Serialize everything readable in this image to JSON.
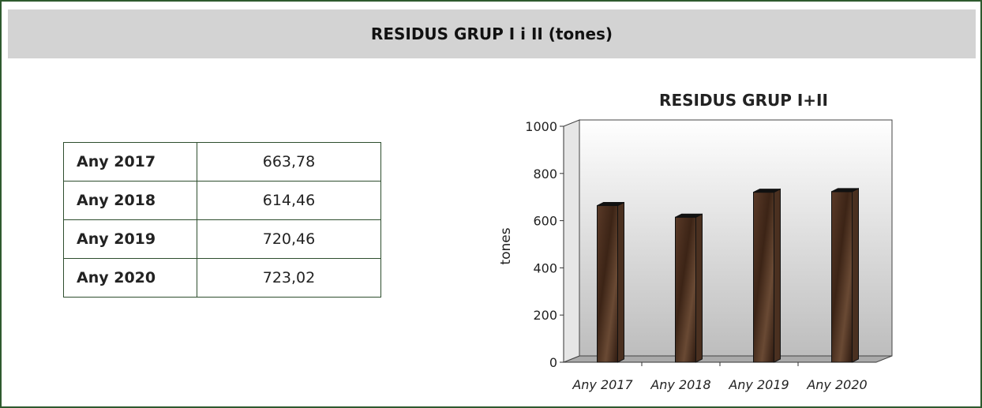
{
  "header": {
    "title": "RESIDUS GRUP I i II (tones)"
  },
  "chart_data": {
    "type": "bar",
    "title": "RESIDUS GRUP I+II",
    "y_label": "tones",
    "categories": [
      "Any 2017",
      "Any 2018",
      "Any 2019",
      "Any 2020"
    ],
    "values": [
      663.78,
      614.46,
      720.46,
      723.02
    ],
    "value_labels": [
      "663,78",
      "614,46",
      "720,46",
      "723,02"
    ],
    "color": "#4a3020",
    "ylim": [
      0,
      1000
    ],
    "yticks": [
      0,
      200,
      400,
      600,
      800,
      1000
    ]
  }
}
